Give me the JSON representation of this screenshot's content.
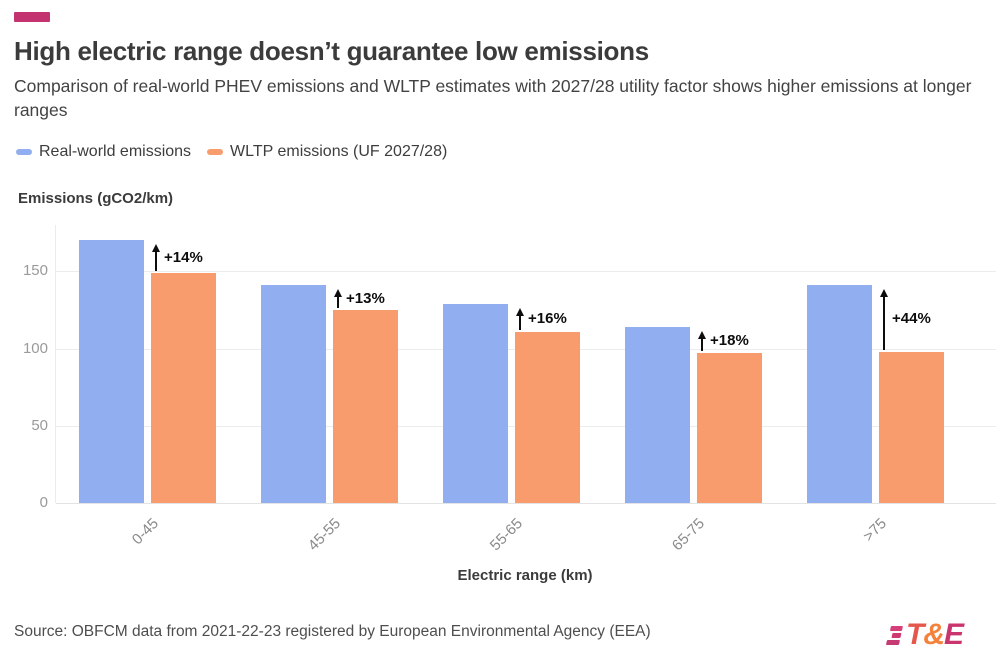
{
  "brand": {
    "accent_color": "#c2336f",
    "logo_t": "T",
    "logo_amp": "&",
    "logo_e": "E"
  },
  "header": {
    "title": "High electric range doesn’t guarantee low emissions",
    "subtitle": "Comparison of real-world PHEV emissions and WLTP estimates with 2027/28 utility factor shows higher emissions at longer ranges"
  },
  "footer": {
    "source": "Source: OBFCM data from 2021-22-23 registered by European Environmental Agency (EEA)"
  },
  "chart_data": {
    "type": "bar",
    "title": "High electric range doesn’t guarantee low emissions",
    "categories": [
      "0-45",
      "45-55",
      "55-65",
      "65-75",
      ">75"
    ],
    "series": [
      {
        "name": "Real-world emissions",
        "color": "#91aff0",
        "values": [
          170,
          141,
          129,
          114,
          141
        ]
      },
      {
        "name": "WLTP emissions (UF 2027/28)",
        "color": "#f89c6e",
        "values": [
          149,
          125,
          111,
          97,
          98
        ]
      }
    ],
    "annotations": [
      "+14%",
      "+13%",
      "+16%",
      "+18%",
      "+44%"
    ],
    "annotation_meaning": "percent increase of real-world over WLTP",
    "xlabel": "Electric range (km)",
    "ylabel": "Emissions (gCO2/km)",
    "yticks": [
      0,
      50,
      100,
      150
    ],
    "ylim": [
      0,
      180
    ],
    "grid": true,
    "legend_position": "top",
    "grid_color": "#ececec",
    "tick_color": "#9a9a9a",
    "annotation_color": "#0d0d0d"
  }
}
